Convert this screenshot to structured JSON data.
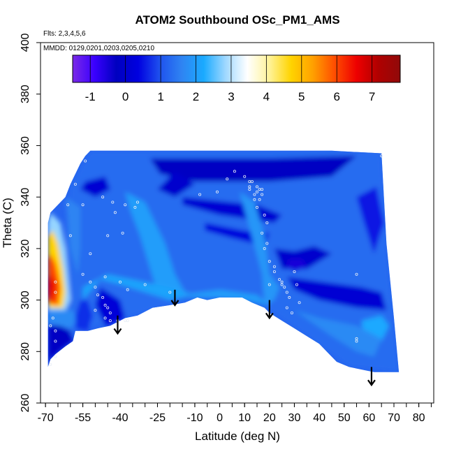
{
  "chart_data": {
    "type": "heatmap",
    "title": "ATOM2 Southbound OSc_PM1_AMS",
    "note_flights": "Flts: 2,3,4,5,6",
    "note_dates": "MMDD: 0129,0201,0203,0205,0210",
    "xlabel": "Latitude (deg N)",
    "ylabel": "Theta (C)",
    "xlim": [
      -72,
      86
    ],
    "ylim": [
      260,
      400
    ],
    "x_ticks": [
      -70,
      -55,
      -40,
      -25,
      -10,
      0,
      10,
      20,
      30,
      40,
      50,
      60,
      70,
      80
    ],
    "y_ticks": [
      260,
      280,
      300,
      320,
      340,
      360,
      380,
      400
    ],
    "colorbar": {
      "range": [
        -1.5,
        7.8
      ],
      "ticks": [
        -1,
        0,
        1,
        2,
        3,
        4,
        5,
        6,
        7
      ],
      "colors": [
        "#7a2ae6",
        "#3a00ff",
        "#0000c0",
        "#0000e0",
        "#1f52ee",
        "#2f84f2",
        "#1aaaff",
        "#9fd8ff",
        "#ffffff",
        "#fff39a",
        "#ffd400",
        "#ffa000",
        "#ff4d00",
        "#ee0000",
        "#b00000",
        "#900a0a"
      ]
    },
    "field_boundary": [
      [
        -69,
        274
      ],
      [
        -68,
        277
      ],
      [
        -66,
        279
      ],
      [
        -62,
        282
      ],
      [
        -59,
        284
      ],
      [
        -58,
        288
      ],
      [
        -53,
        288
      ],
      [
        -49,
        289
      ],
      [
        -44,
        290
      ],
      [
        -38,
        293
      ],
      [
        -33,
        294
      ],
      [
        -27,
        297
      ],
      [
        -20,
        298
      ],
      [
        -14,
        299
      ],
      [
        -9,
        301
      ],
      [
        -5,
        300
      ],
      [
        0,
        301
      ],
      [
        5,
        301
      ],
      [
        9,
        301
      ],
      [
        13,
        299
      ],
      [
        18,
        297
      ],
      [
        20,
        295
      ],
      [
        25,
        292
      ],
      [
        30,
        289
      ],
      [
        35,
        286
      ],
      [
        40,
        283
      ],
      [
        44,
        279
      ],
      [
        47,
        276
      ],
      [
        52,
        274
      ],
      [
        57,
        273
      ],
      [
        62,
        272
      ],
      [
        70,
        272
      ],
      [
        72,
        272
      ],
      [
        70,
        293
      ],
      [
        67,
        322
      ],
      [
        65,
        357
      ],
      [
        45,
        358
      ],
      [
        20,
        358
      ],
      [
        -20,
        358
      ],
      [
        -40,
        358
      ],
      [
        -52,
        358
      ],
      [
        -54,
        356
      ],
      [
        -56,
        353
      ],
      [
        -58,
        349
      ],
      [
        -60,
        345
      ],
      [
        -62,
        340
      ],
      [
        -66,
        336
      ],
      [
        -68,
        334
      ],
      [
        -69,
        330
      ]
    ],
    "field_patches": [
      {
        "value": 1.3,
        "points": [
          [
            -52,
            358
          ],
          [
            65,
            358
          ],
          [
            67,
            322
          ],
          [
            70,
            292
          ],
          [
            72,
            272
          ],
          [
            52,
            274
          ],
          [
            35,
            286
          ],
          [
            20,
            296
          ],
          [
            0,
            301
          ],
          [
            -20,
            298
          ],
          [
            -38,
            293
          ],
          [
            -58,
            288
          ],
          [
            -62,
            282
          ],
          [
            -62,
            320
          ],
          [
            -60,
            345
          ]
        ]
      },
      {
        "value": -0.2,
        "points": [
          [
            -28,
            355
          ],
          [
            20,
            355
          ],
          [
            55,
            356
          ],
          [
            45,
            348
          ],
          [
            20,
            346
          ],
          [
            -10,
            346
          ],
          [
            -24,
            349
          ]
        ]
      },
      {
        "value": 0.1,
        "points": [
          [
            -15,
            340
          ],
          [
            15,
            337
          ],
          [
            25,
            333
          ],
          [
            22,
            330
          ],
          [
            0,
            333
          ],
          [
            -15,
            337
          ]
        ]
      },
      {
        "value": 0.0,
        "points": [
          [
            22,
            320
          ],
          [
            30,
            319
          ],
          [
            38,
            321
          ],
          [
            45,
            318
          ],
          [
            35,
            312
          ],
          [
            25,
            312
          ]
        ]
      },
      {
        "value": 0.1,
        "points": [
          [
            27,
            309
          ],
          [
            42,
            307
          ],
          [
            57,
            305
          ],
          [
            65,
            303
          ],
          [
            67,
            296
          ],
          [
            55,
            297
          ],
          [
            40,
            300
          ],
          [
            30,
            304
          ]
        ]
      },
      {
        "value": 0.0,
        "points": [
          [
            -25,
            343
          ],
          [
            -18,
            340
          ],
          [
            -10,
            345
          ],
          [
            -18,
            350
          ]
        ]
      },
      {
        "value": 0.3,
        "points": [
          [
            -6,
            330
          ],
          [
            10,
            327
          ],
          [
            20,
            326
          ],
          [
            18,
            321
          ],
          [
            5,
            324
          ],
          [
            -6,
            327
          ]
        ]
      },
      {
        "value": -0.5,
        "points": [
          [
            28,
            316
          ],
          [
            33,
            316
          ],
          [
            35,
            313
          ],
          [
            30,
            311
          ],
          [
            27,
            313
          ]
        ]
      },
      {
        "value": 0.5,
        "points": [
          [
            55,
            340
          ],
          [
            63,
            344
          ],
          [
            66,
            330
          ],
          [
            62,
            318
          ],
          [
            58,
            330
          ]
        ]
      },
      {
        "value": 2.0,
        "points": [
          [
            -38,
            342
          ],
          [
            -30,
            338
          ],
          [
            -22,
            322
          ],
          [
            -18,
            310
          ],
          [
            -14,
            303
          ],
          [
            -20,
            300
          ],
          [
            -26,
            306
          ],
          [
            -32,
            325
          ],
          [
            -36,
            335
          ]
        ]
      },
      {
        "value": 2.1,
        "points": [
          [
            -55,
            300
          ],
          [
            -48,
            308
          ],
          [
            -40,
            306
          ],
          [
            -30,
            303
          ],
          [
            -20,
            300
          ],
          [
            -10,
            302
          ],
          [
            -20,
            305
          ],
          [
            -35,
            308
          ],
          [
            -45,
            310
          ],
          [
            -55,
            305
          ]
        ]
      },
      {
        "value": 1.9,
        "points": [
          [
            8,
            342
          ],
          [
            14,
            338
          ],
          [
            18,
            325
          ],
          [
            20,
            310
          ],
          [
            24,
            305
          ],
          [
            22,
            300
          ],
          [
            18,
            298
          ],
          [
            17,
            310
          ],
          [
            12,
            328
          ]
        ]
      },
      {
        "value": 2.0,
        "points": [
          [
            -16,
            302
          ],
          [
            0,
            304
          ],
          [
            15,
            302
          ],
          [
            20,
            298
          ],
          [
            10,
            300
          ],
          [
            -5,
            301
          ],
          [
            -10,
            301
          ]
        ]
      },
      {
        "value": 2.2,
        "points": [
          [
            57,
            292
          ],
          [
            65,
            294
          ],
          [
            68,
            290
          ],
          [
            65,
            284
          ],
          [
            58,
            285
          ]
        ]
      },
      {
        "value": 1.7,
        "points": [
          [
            30,
            296
          ],
          [
            45,
            286
          ],
          [
            55,
            280
          ],
          [
            62,
            278
          ],
          [
            65,
            285
          ],
          [
            55,
            290
          ],
          [
            40,
            293
          ]
        ]
      },
      {
        "value": 0.1,
        "points": [
          [
            -54,
            346
          ],
          [
            -46,
            348
          ],
          [
            -44,
            343
          ],
          [
            -50,
            340
          ],
          [
            -56,
            343
          ]
        ]
      },
      {
        "value": 0.2,
        "points": [
          [
            -48,
            305
          ],
          [
            -40,
            300
          ],
          [
            -38,
            293
          ],
          [
            -46,
            290
          ],
          [
            -50,
            298
          ]
        ]
      },
      {
        "value": 1.6,
        "points": [
          [
            -62,
            340
          ],
          [
            -56,
            336
          ],
          [
            -56,
            320
          ],
          [
            -57,
            310
          ],
          [
            -60,
            320
          ]
        ]
      },
      {
        "value": -0.3,
        "points": [
          [
            -69,
            274
          ],
          [
            -68,
            277
          ],
          [
            -62,
            282
          ],
          [
            -59,
            284
          ],
          [
            -60,
            288
          ],
          [
            -64,
            290
          ],
          [
            -69,
            290
          ]
        ]
      },
      {
        "value": 1.7,
        "points": [
          [
            -69,
            291
          ],
          [
            -60,
            289
          ],
          [
            -57,
            292
          ],
          [
            -59,
            296
          ],
          [
            -69,
            296
          ]
        ]
      },
      {
        "value": 0.7,
        "points": [
          [
            -58,
            289
          ],
          [
            -53,
            288
          ],
          [
            -51,
            294
          ],
          [
            -53,
            300
          ],
          [
            -56,
            300
          ],
          [
            -58,
            294
          ]
        ]
      },
      {
        "value": 2.8,
        "points": [
          [
            -69,
            296
          ],
          [
            -62,
            296
          ],
          [
            -60,
            300
          ],
          [
            -61,
            310
          ],
          [
            -62,
            320
          ],
          [
            -64,
            330
          ],
          [
            -68,
            334
          ],
          [
            -69,
            330
          ]
        ]
      },
      {
        "value": 4.7,
        "points": [
          [
            -69,
            297
          ],
          [
            -63,
            297
          ],
          [
            -62,
            303
          ],
          [
            -63,
            312
          ],
          [
            -65,
            322
          ],
          [
            -67,
            327
          ],
          [
            -69,
            325
          ]
        ]
      },
      {
        "value": 6.0,
        "points": [
          [
            -69,
            299
          ],
          [
            -65,
            298
          ],
          [
            -64,
            305
          ],
          [
            -66,
            314
          ],
          [
            -68,
            318
          ],
          [
            -69,
            316
          ]
        ]
      },
      {
        "value": 6.6,
        "points": [
          [
            -69,
            301
          ],
          [
            -67,
            300
          ],
          [
            -66,
            306
          ],
          [
            -68,
            310
          ],
          [
            -69,
            309
          ]
        ]
      }
    ],
    "observations": [
      [
        -54,
        354
      ],
      [
        -58,
        345
      ],
      [
        -61,
        337
      ],
      [
        -55,
        337
      ],
      [
        -43,
        338
      ],
      [
        -47,
        340
      ],
      [
        -42,
        334
      ],
      [
        -38,
        337
      ],
      [
        -33,
        338
      ],
      [
        -34,
        336
      ],
      [
        -39,
        326
      ],
      [
        -45,
        325
      ],
      [
        -52,
        318
      ],
      [
        -60,
        325
      ],
      [
        -55,
        310
      ],
      [
        -52,
        307
      ],
      [
        -50,
        305
      ],
      [
        -49,
        302
      ],
      [
        -47,
        301
      ],
      [
        -46,
        298
      ],
      [
        -45,
        297
      ],
      [
        -44,
        295
      ],
      [
        -46,
        293
      ],
      [
        -44,
        292
      ],
      [
        -41,
        292
      ],
      [
        -38,
        292
      ],
      [
        -37,
        292
      ],
      [
        -30,
        306
      ],
      [
        -37,
        304
      ],
      [
        -40,
        307
      ],
      [
        -46,
        309
      ],
      [
        -50,
        296
      ],
      [
        -66,
        307
      ],
      [
        -66,
        303
      ],
      [
        -67,
        293
      ],
      [
        -66,
        284
      ],
      [
        -66,
        278
      ],
      [
        -68,
        275
      ],
      [
        -20,
        303
      ],
      [
        -8,
        341
      ],
      [
        -1,
        342
      ],
      [
        3,
        347
      ],
      [
        6,
        350
      ],
      [
        10,
        348
      ],
      [
        12,
        344
      ],
      [
        13,
        346
      ],
      [
        14,
        341
      ],
      [
        14,
        339
      ],
      [
        15,
        336
      ],
      [
        15,
        342
      ],
      [
        15,
        344
      ],
      [
        16,
        343
      ],
      [
        17,
        343
      ],
      [
        17,
        341
      ],
      [
        16,
        339
      ],
      [
        18,
        333
      ],
      [
        19,
        330
      ],
      [
        17,
        326
      ],
      [
        19,
        322
      ],
      [
        18,
        320
      ],
      [
        20,
        315
      ],
      [
        22,
        313
      ],
      [
        22,
        311
      ],
      [
        24,
        308
      ],
      [
        25,
        306
      ],
      [
        25,
        307
      ],
      [
        26,
        305
      ],
      [
        27,
        303
      ],
      [
        28,
        301
      ],
      [
        27,
        297
      ],
      [
        29,
        295
      ],
      [
        30,
        311
      ],
      [
        31,
        306
      ],
      [
        32,
        299
      ],
      [
        20,
        306
      ],
      [
        12,
        343
      ],
      [
        12,
        346
      ],
      [
        55,
        284
      ],
      [
        55,
        285
      ],
      [
        55,
        310
      ],
      [
        65,
        356
      ],
      [
        -68,
        290
      ],
      [
        -66,
        288
      ]
    ],
    "arrows": [
      {
        "x": -41,
        "y_top": 294,
        "y_bottom": 287
      },
      {
        "x": -18,
        "y_top": 304,
        "y_bottom": 298
      },
      {
        "x": 20,
        "y_top": 300,
        "y_bottom": 293
      },
      {
        "x": 61,
        "y_top": 274,
        "y_bottom": 267
      }
    ]
  }
}
